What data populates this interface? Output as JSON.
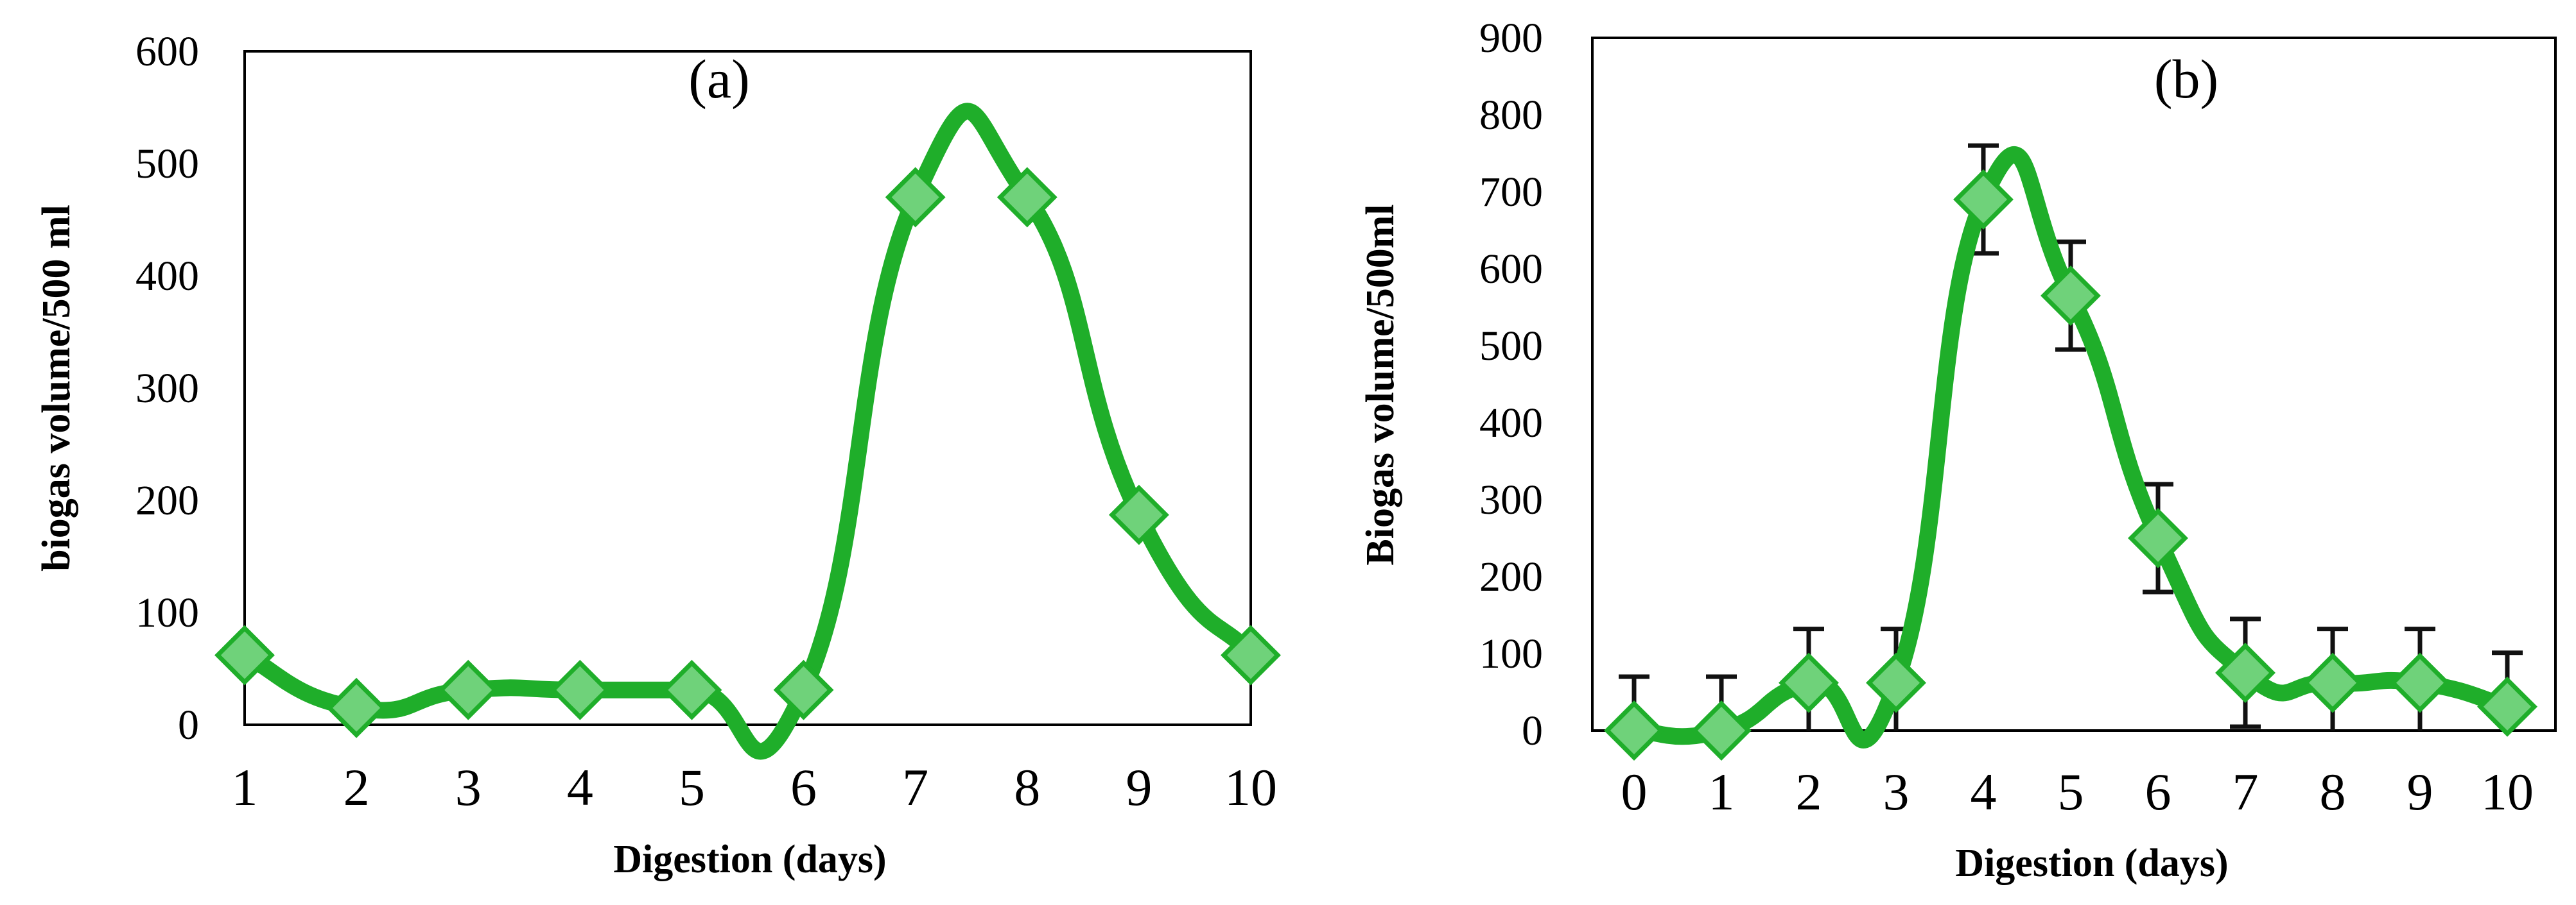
{
  "chart_data": [
    {
      "type": "line",
      "panel_label": "(a)",
      "xlabel": "Digestion (days)",
      "ylabel": "biogas volume/500 ml",
      "x": [
        1,
        2,
        3,
        4,
        5,
        6,
        7,
        8,
        9,
        10
      ],
      "values": [
        62,
        15,
        31,
        31,
        31,
        31,
        470,
        470,
        187,
        62
      ],
      "xlim": [
        1,
        10
      ],
      "ylim": [
        0,
        600
      ],
      "yticks": [
        0,
        100,
        200,
        300,
        400,
        500,
        600
      ],
      "xticks": [
        1,
        2,
        3,
        4,
        5,
        6,
        7,
        8,
        9,
        10
      ],
      "smooth": true,
      "marker": "diamond",
      "color": "#1fae2a",
      "marker_fill": "#6fd27a",
      "grid": false,
      "frame": "box"
    },
    {
      "type": "line",
      "panel_label": "(b)",
      "xlabel": "Digestion (days)",
      "ylabel": "Biogas volume/500ml",
      "x": [
        0,
        1,
        2,
        3,
        4,
        5,
        6,
        7,
        8,
        9,
        10
      ],
      "values": [
        0,
        0,
        62,
        62,
        690,
        565,
        250,
        75,
        62,
        62,
        31
      ],
      "error": [
        70,
        70,
        70,
        70,
        70,
        70,
        70,
        70,
        70,
        70,
        70
      ],
      "xlim": [
        0,
        10
      ],
      "ylim": [
        0,
        900
      ],
      "yticks": [
        0,
        100,
        200,
        300,
        400,
        500,
        600,
        700,
        800,
        900
      ],
      "xticks": [
        0,
        1,
        2,
        3,
        4,
        5,
        6,
        7,
        8,
        9,
        10
      ],
      "smooth": true,
      "marker": "diamond",
      "color": "#1fae2a",
      "marker_fill": "#6fd27a",
      "errorbar_color": "#111111",
      "grid": false,
      "frame": "box"
    }
  ]
}
